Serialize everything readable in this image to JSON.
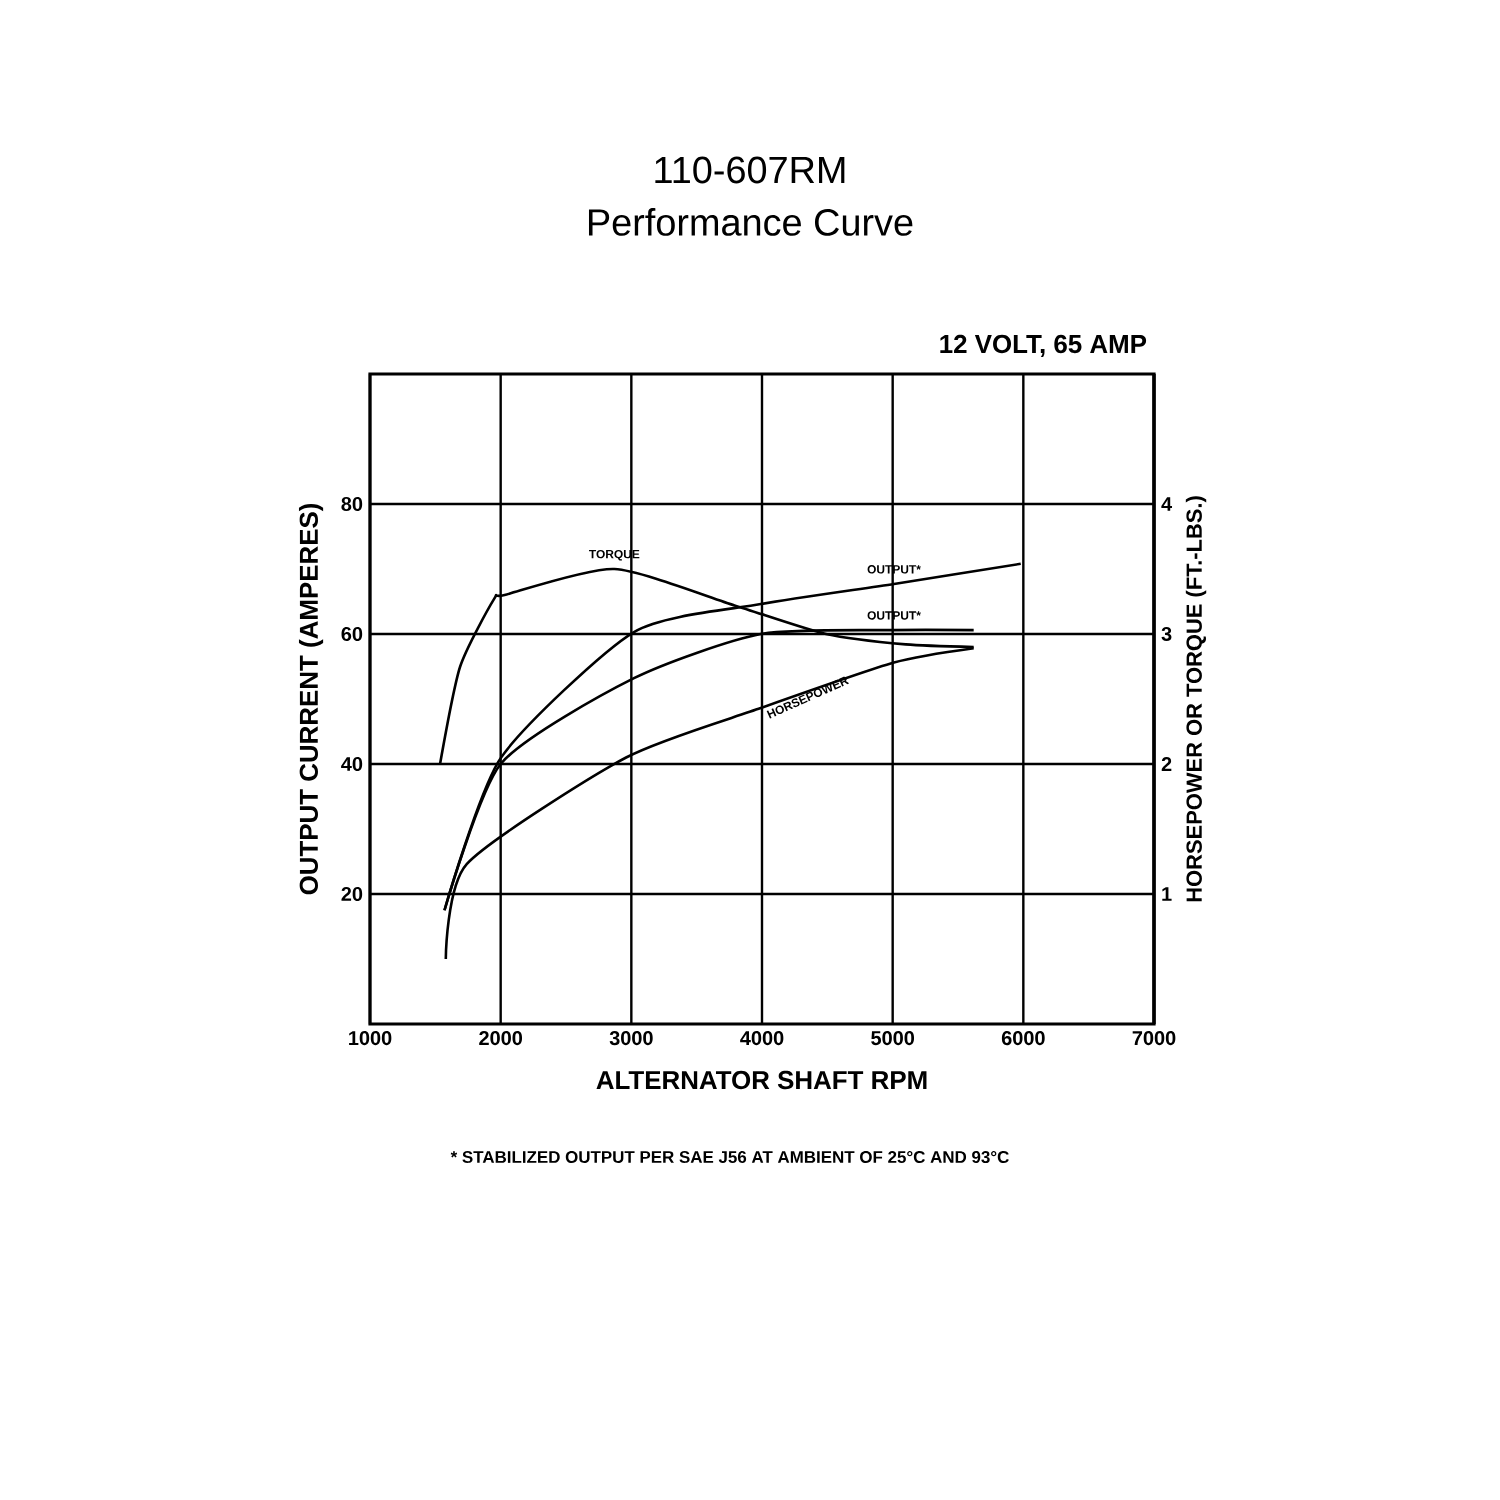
{
  "chart_data": {
    "type": "line",
    "title": "110-607RM",
    "subtitle": "Performance Curve",
    "xlabel": "ALTERNATOR SHAFT RPM",
    "ylabel": "OUTPUT CURRENT (AMPERES)",
    "y2label": "HORSEPOWER OR TORQUE (FT.-LBS.)",
    "annotations": [
      "12 VOLT, 65 AMP",
      "* STABILIZED OUTPUT PER SAE J56 AT AMBIENT OF 25°C AND 93°C"
    ],
    "xlim": [
      1000,
      7000
    ],
    "xticks": [
      1000,
      2000,
      3000,
      4000,
      5000,
      6000,
      7000
    ],
    "ylim": [
      0,
      100
    ],
    "yticks": [
      20,
      40,
      60,
      80
    ],
    "y2lim": [
      0,
      5
    ],
    "y2ticks": [
      1,
      2,
      3,
      4
    ],
    "grid": true,
    "series": [
      {
        "name": "TORQUE",
        "color": "#000000",
        "axis": "y2",
        "x": [
          1536,
          1690,
          1950,
          2030,
          2870,
          3790,
          4490,
          5100,
          5620
        ],
        "values": [
          2.0,
          2.75,
          3.27,
          3.3,
          3.5,
          3.22,
          3.0,
          2.92,
          2.9
        ]
      },
      {
        "name": "OUTPUT*",
        "color": "#000000",
        "x": [
          1570,
          2000,
          3020,
          3990,
          5010,
          5980
        ],
        "values": [
          17.5,
          40.9,
          60.3,
          64.6,
          67.7,
          70.8
        ]
      },
      {
        "name": "OUTPUT*",
        "color": "#000000",
        "x": [
          1570,
          2000,
          3020,
          3990,
          5010,
          5620
        ],
        "values": [
          17.5,
          40,
          53.2,
          60,
          60.6,
          60.6
        ]
      },
      {
        "name": "HORSEPOWER",
        "color": "#000000",
        "axis": "y2",
        "x": [
          1580,
          1740,
          2960,
          3990,
          5010,
          5620
        ],
        "values": [
          0.5,
          1.23,
          2.05,
          2.43,
          2.78,
          2.89
        ]
      }
    ]
  }
}
